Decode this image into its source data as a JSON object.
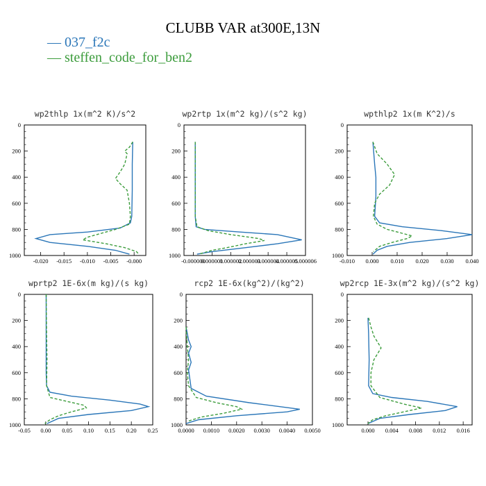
{
  "title": "CLUBB VAR at300E,13N",
  "legend": [
    {
      "label": "— 037_f2c",
      "color": "#2a76b8"
    },
    {
      "label": "— steffen_code_for_ben2",
      "color": "#3c9c3c"
    }
  ],
  "colors": {
    "series1": "#2a76b8",
    "series2": "#3c9c3c"
  },
  "chart_data": [
    {
      "type": "line",
      "title": "wp2thlp  1x(m^2 K)/s^2",
      "xlim": [
        -0.0235,
        0.0025
      ],
      "ylim": [
        1000,
        0
      ],
      "xticks": [
        -0.02,
        -0.015,
        -0.01,
        -0.005,
        0.0
      ],
      "xticklabels": [
        "-0.020",
        "-0.015",
        "-0.010",
        "-0.005",
        "-0.000"
      ],
      "yticks": [
        0,
        200,
        400,
        600,
        800,
        1000
      ],
      "series": [
        {
          "name": "037_f2c",
          "points": [
            [
              -0.0003,
              130
            ],
            [
              -0.0004,
              300
            ],
            [
              -0.0004,
              500
            ],
            [
              -0.0005,
              700
            ],
            [
              -0.0008,
              750
            ],
            [
              -0.003,
              790
            ],
            [
              -0.01,
              820
            ],
            [
              -0.018,
              840
            ],
            [
              -0.021,
              870
            ],
            [
              -0.018,
              900
            ],
            [
              -0.01,
              930
            ],
            [
              -0.004,
              960
            ],
            [
              -0.001,
              990
            ]
          ]
        },
        {
          "name": "steffen_code_for_ben2",
          "points": [
            [
              -0.0003,
              130
            ],
            [
              -0.001,
              170
            ],
            [
              -0.002,
              200
            ],
            [
              -0.0015,
              220
            ],
            [
              -0.002,
              300
            ],
            [
              -0.003,
              360
            ],
            [
              -0.004,
              410
            ],
            [
              -0.003,
              450
            ],
            [
              -0.0015,
              500
            ],
            [
              -0.001,
              600
            ],
            [
              -0.0008,
              700
            ],
            [
              -0.001,
              760
            ],
            [
              -0.004,
              800
            ],
            [
              -0.007,
              830
            ],
            [
              -0.01,
              860
            ],
            [
              -0.011,
              880
            ],
            [
              -0.006,
              910
            ],
            [
              -0.002,
              940
            ],
            [
              0.0005,
              970
            ],
            [
              0.001,
              990
            ]
          ]
        }
      ]
    },
    {
      "type": "line",
      "title": "wp2rtp  1x(m^2 kg)/(s^2 kg)",
      "xlim": [
        -5e-07,
        6e-06
      ],
      "ylim": [
        1000,
        0
      ],
      "xticks": [
        0.0,
        1e-06,
        2e-06,
        3e-06,
        4e-06,
        5e-06,
        6e-06
      ],
      "xticklabels": [
        "-0.000000",
        "0.000001",
        "0.000002",
        "0.000003",
        "0.000004",
        "0.000005",
        "0.000006"
      ],
      "yticks": [
        0,
        200,
        400,
        600,
        800,
        1000
      ],
      "series": [
        {
          "name": "037_f2c",
          "points": [
            [
              1e-07,
              130
            ],
            [
              1e-07,
              400
            ],
            [
              1e-07,
              700
            ],
            [
              1.5e-07,
              780
            ],
            [
              6e-07,
              800
            ],
            [
              2.5e-06,
              820
            ],
            [
              4.5e-06,
              840
            ],
            [
              5.8e-06,
              880
            ],
            [
              4.5e-06,
              910
            ],
            [
              2.8e-06,
              940
            ],
            [
              1e-06,
              970
            ],
            [
              2e-07,
              990
            ]
          ]
        },
        {
          "name": "steffen_code_for_ben2",
          "points": [
            [
              1e-07,
              130
            ],
            [
              1e-07,
              400
            ],
            [
              1e-07,
              700
            ],
            [
              2e-07,
              780
            ],
            [
              8e-07,
              810
            ],
            [
              2e-06,
              840
            ],
            [
              3.5e-06,
              870
            ],
            [
              3.8e-06,
              885
            ],
            [
              2.8e-06,
              910
            ],
            [
              1.8e-06,
              940
            ],
            [
              1e-06,
              960
            ],
            [
              3e-07,
              990
            ]
          ]
        }
      ]
    },
    {
      "type": "line",
      "title": "wpthlp2  1x(m K^2)/s",
      "xlim": [
        -0.01,
        0.04
      ],
      "ylim": [
        1000,
        0
      ],
      "xticks": [
        -0.01,
        0.0,
        0.01,
        0.02,
        0.03,
        0.04
      ],
      "xticklabels": [
        "-0.010",
        "0.000",
        "0.010",
        "0.020",
        "0.030",
        "0.040"
      ],
      "yticks": [
        0,
        200,
        400,
        600,
        800,
        1000
      ],
      "series": [
        {
          "name": "037_f2c",
          "points": [
            [
              0.0003,
              130
            ],
            [
              0.001,
              300
            ],
            [
              0.0015,
              400
            ],
            [
              0.0015,
              550
            ],
            [
              0.001,
              700
            ],
            [
              0.003,
              750
            ],
            [
              0.012,
              780
            ],
            [
              0.028,
              810
            ],
            [
              0.04,
              840
            ],
            [
              0.03,
              870
            ],
            [
              0.015,
              900
            ],
            [
              0.006,
              930
            ],
            [
              0.002,
              960
            ],
            [
              0.0003,
              990
            ]
          ]
        },
        {
          "name": "steffen_code_for_ben2",
          "points": [
            [
              0.0003,
              130
            ],
            [
              0.002,
              220
            ],
            [
              0.006,
              300
            ],
            [
              0.009,
              380
            ],
            [
              0.007,
              460
            ],
            [
              0.003,
              530
            ],
            [
              0.001,
              600
            ],
            [
              0.0005,
              700
            ],
            [
              0.002,
              760
            ],
            [
              0.006,
              800
            ],
            [
              0.012,
              830
            ],
            [
              0.016,
              850
            ],
            [
              0.014,
              870
            ],
            [
              0.008,
              900
            ],
            [
              0.003,
              930
            ],
            [
              0.0005,
              970
            ]
          ]
        }
      ]
    },
    {
      "type": "line",
      "title": "wprtp2  1E-6x(m kg)/(s kg)",
      "xlim": [
        -0.05,
        0.25
      ],
      "ylim": [
        1000,
        0
      ],
      "xticks": [
        -0.05,
        0.0,
        0.05,
        0.1,
        0.15,
        0.2,
        0.25
      ],
      "xticklabels": [
        "-0.05",
        "0.00",
        "0.05",
        "0.10",
        "0.15",
        "0.20",
        "0.25"
      ],
      "yticks": [
        0,
        200,
        400,
        600,
        800,
        1000
      ],
      "series": [
        {
          "name": "037_f2c",
          "points": [
            [
              0.001,
              0
            ],
            [
              0.001,
              300
            ],
            [
              0.001,
              600
            ],
            [
              0.002,
              700
            ],
            [
              0.01,
              750
            ],
            [
              0.06,
              780
            ],
            [
              0.15,
              810
            ],
            [
              0.22,
              840
            ],
            [
              0.24,
              860
            ],
            [
              0.2,
              890
            ],
            [
              0.1,
              920
            ],
            [
              0.03,
              950
            ],
            [
              0.003,
              990
            ]
          ]
        },
        {
          "name": "steffen_code_for_ben2",
          "points": [
            [
              0.001,
              0
            ],
            [
              0.002,
              300
            ],
            [
              0.003,
              500
            ],
            [
              0.002,
              700
            ],
            [
              0.01,
              790
            ],
            [
              0.05,
              820
            ],
            [
              0.09,
              850
            ],
            [
              0.095,
              870
            ],
            [
              0.06,
              900
            ],
            [
              0.03,
              930
            ],
            [
              0.01,
              960
            ],
            [
              -0.002,
              990
            ]
          ]
        }
      ]
    },
    {
      "type": "line",
      "title": "rcp2  1E-6x(kg^2)/(kg^2)",
      "xlim": [
        0.0,
        0.005
      ],
      "ylim": [
        1000,
        0
      ],
      "xticks": [
        0.0,
        0.001,
        0.002,
        0.003,
        0.004,
        0.005
      ],
      "xticklabels": [
        "0.0000",
        "0.0010",
        "0.0020",
        "0.0030",
        "0.0040",
        "0.0050"
      ],
      "yticks": [
        0,
        200,
        400,
        600,
        800,
        1000
      ],
      "series": [
        {
          "name": "037_f2c",
          "points": [
            [
              0.0,
              250
            ],
            [
              0.0001,
              350
            ],
            [
              0.0002,
              400
            ],
            [
              0.0001,
              450
            ],
            [
              0.0002,
              520
            ],
            [
              0.0001,
              580
            ],
            [
              0.00015,
              650
            ],
            [
              0.0002,
              720
            ],
            [
              0.0008,
              780
            ],
            [
              0.0025,
              830
            ],
            [
              0.0045,
              880
            ],
            [
              0.004,
              900
            ],
            [
              0.002,
              930
            ],
            [
              0.0005,
              960
            ],
            [
              0.0,
              990
            ]
          ]
        },
        {
          "name": "steffen_code_for_ben2",
          "points": [
            [
              0.0,
              250
            ],
            [
              5e-05,
              400
            ],
            [
              0.0001,
              500
            ],
            [
              5e-05,
              600
            ],
            [
              0.0001,
              700
            ],
            [
              0.0004,
              790
            ],
            [
              0.0012,
              830
            ],
            [
              0.002,
              860
            ],
            [
              0.0022,
              880
            ],
            [
              0.0015,
              910
            ],
            [
              0.0006,
              940
            ],
            [
              0.0001,
              970
            ]
          ]
        }
      ]
    },
    {
      "type": "line",
      "title": "wp2rcp  1E-3x(m^2 kg)/(s^2 kg)",
      "xlim": [
        -0.0035,
        0.0175
      ],
      "ylim": [
        1000,
        0
      ],
      "xticks": [
        0.0,
        0.004,
        0.008,
        0.012,
        0.016
      ],
      "xticklabels": [
        "0.000",
        "0.004",
        "0.008",
        "0.012",
        "0.016"
      ],
      "yticks": [
        0,
        200,
        400,
        600,
        800,
        1000
      ],
      "series": [
        {
          "name": "037_f2c",
          "points": [
            [
              0.0,
              180
            ],
            [
              0.0001,
              300
            ],
            [
              0.0002,
              500
            ],
            [
              0.0001,
              700
            ],
            [
              0.0008,
              760
            ],
            [
              0.004,
              790
            ],
            [
              0.01,
              820
            ],
            [
              0.015,
              860
            ],
            [
              0.013,
              890
            ],
            [
              0.007,
              920
            ],
            [
              0.002,
              950
            ],
            [
              0.0,
              990
            ]
          ]
        },
        {
          "name": "steffen_code_for_ben2",
          "points": [
            [
              0.0001,
              180
            ],
            [
              0.0005,
              250
            ],
            [
              0.001,
              320
            ],
            [
              0.0022,
              410
            ],
            [
              0.001,
              500
            ],
            [
              0.0005,
              600
            ],
            [
              0.0005,
              700
            ],
            [
              0.002,
              790
            ],
            [
              0.006,
              840
            ],
            [
              0.009,
              870
            ],
            [
              0.006,
              900
            ],
            [
              0.003,
              930
            ],
            [
              0.0008,
              960
            ],
            [
              0.0,
              990
            ]
          ]
        }
      ]
    }
  ]
}
